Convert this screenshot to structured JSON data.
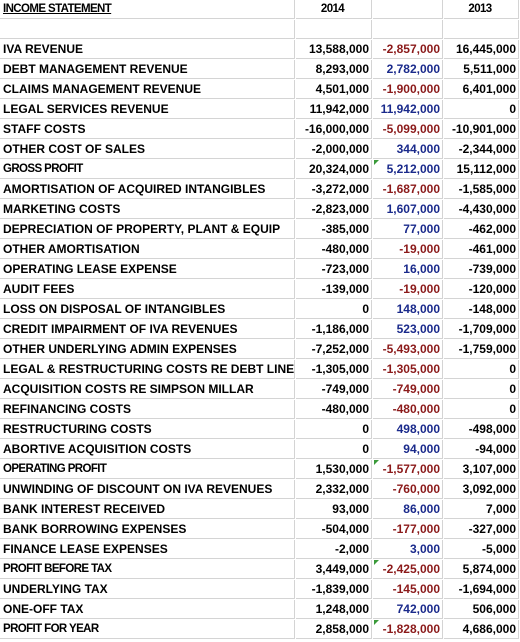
{
  "header": {
    "title": "INCOME STATEMENT",
    "year_current": "2014",
    "year_prior": "2013"
  },
  "rows": [
    {
      "label": "IVA REVENUE",
      "a": "13,588,000",
      "b": "-2,857,000",
      "c": "16,445,000",
      "b_sign": "neg"
    },
    {
      "label": "DEBT MANAGEMENT REVENUE",
      "a": "8,293,000",
      "b": "2,782,000",
      "c": "5,511,000",
      "b_sign": "pos"
    },
    {
      "label": "CLAIMS MANAGEMENT REVENUE",
      "a": "4,501,000",
      "b": "-1,900,000",
      "c": "6,401,000",
      "b_sign": "neg"
    },
    {
      "label": "LEGAL SERVICES REVENUE",
      "a": "11,942,000",
      "b": "11,942,000",
      "c": "0",
      "b_sign": "pos"
    },
    {
      "label": "STAFF COSTS",
      "a": "-16,000,000",
      "b": "-5,099,000",
      "c": "-10,901,000",
      "b_sign": "neg"
    },
    {
      "label": "OTHER COST OF SALES",
      "a": "-2,000,000",
      "b": "344,000",
      "c": "-2,344,000",
      "b_sign": "pos"
    },
    {
      "label": "GROSS PROFIT",
      "a": "20,324,000",
      "b": "5,212,000",
      "c": "15,112,000",
      "b_sign": "pos",
      "strong": true,
      "flag": true
    },
    {
      "label": "AMORTISATION OF ACQUIRED INTANGIBLES",
      "a": "-3,272,000",
      "b": "-1,687,000",
      "c": "-1,585,000",
      "b_sign": "neg"
    },
    {
      "label": "MARKETING COSTS",
      "a": "-2,823,000",
      "b": "1,607,000",
      "c": "-4,430,000",
      "b_sign": "pos"
    },
    {
      "label": "DEPRECIATION OF PROPERTY, PLANT & EQUIP",
      "a": "-385,000",
      "b": "77,000",
      "c": "-462,000",
      "b_sign": "pos"
    },
    {
      "label": "OTHER AMORTISATION",
      "a": "-480,000",
      "b": "-19,000",
      "c": "-461,000",
      "b_sign": "neg"
    },
    {
      "label": "OPERATING LEASE EXPENSE",
      "a": "-723,000",
      "b": "16,000",
      "c": "-739,000",
      "b_sign": "pos"
    },
    {
      "label": "AUDIT FEES",
      "a": "-139,000",
      "b": "-19,000",
      "c": "-120,000",
      "b_sign": "neg"
    },
    {
      "label": "LOSS ON DISPOSAL OF INTANGIBLES",
      "a": "0",
      "b": "148,000",
      "c": "-148,000",
      "b_sign": "pos"
    },
    {
      "label": "CREDIT IMPAIRMENT OF IVA REVENUES",
      "a": "-1,186,000",
      "b": "523,000",
      "c": "-1,709,000",
      "b_sign": "pos"
    },
    {
      "label": "OTHER UNDERLYING ADMIN EXPENSES",
      "a": "-7,252,000",
      "b": "-5,493,000",
      "c": "-1,759,000",
      "b_sign": "neg"
    },
    {
      "label": "LEGAL & RESTRUCTURING COSTS RE DEBT LINE",
      "a": "-1,305,000",
      "b": "-1,305,000",
      "c": "0",
      "b_sign": "neg"
    },
    {
      "label": "ACQUISITION COSTS RE SIMPSON MILLAR",
      "a": "-749,000",
      "b": "-749,000",
      "c": "0",
      "b_sign": "neg"
    },
    {
      "label": "REFINANCING COSTS",
      "a": "-480,000",
      "b": "-480,000",
      "c": "0",
      "b_sign": "neg"
    },
    {
      "label": "RESTRUCTURING COSTS",
      "a": "0",
      "b": "498,000",
      "c": "-498,000",
      "b_sign": "pos"
    },
    {
      "label": "ABORTIVE ACQUISITION COSTS",
      "a": "0",
      "b": "94,000",
      "c": "-94,000",
      "b_sign": "pos"
    },
    {
      "label": "OPERATING PROFIT",
      "a": "1,530,000",
      "b": "-1,577,000",
      "c": "3,107,000",
      "b_sign": "neg",
      "strong": true,
      "flag": true
    },
    {
      "label": "UNWINDING OF DISCOUNT ON IVA REVENUES",
      "a": "2,332,000",
      "b": "-760,000",
      "c": "3,092,000",
      "b_sign": "neg"
    },
    {
      "label": "BANK INTEREST RECEIVED",
      "a": "93,000",
      "b": "86,000",
      "c": "7,000",
      "b_sign": "pos"
    },
    {
      "label": "BANK BORROWING EXPENSES",
      "a": "-504,000",
      "b": "-177,000",
      "c": "-327,000",
      "b_sign": "neg"
    },
    {
      "label": "FINANCE LEASE EXPENSES",
      "a": "-2,000",
      "b": "3,000",
      "c": "-5,000",
      "b_sign": "pos"
    },
    {
      "label": "PROFIT BEFORE TAX",
      "a": "3,449,000",
      "b": "-2,425,000",
      "c": "5,874,000",
      "b_sign": "neg",
      "strong": true,
      "flag": true
    },
    {
      "label": "UNDERLYING TAX",
      "a": "-1,839,000",
      "b": "-145,000",
      "c": "-1,694,000",
      "b_sign": "neg"
    },
    {
      "label": "ONE-OFF TAX",
      "a": "1,248,000",
      "b": "742,000",
      "c": "506,000",
      "b_sign": "pos"
    },
    {
      "label": "PROFIT FOR YEAR",
      "a": "2,858,000",
      "b": "-1,828,000",
      "c": "4,686,000",
      "b_sign": "neg",
      "strong": true,
      "flag": true
    }
  ]
}
